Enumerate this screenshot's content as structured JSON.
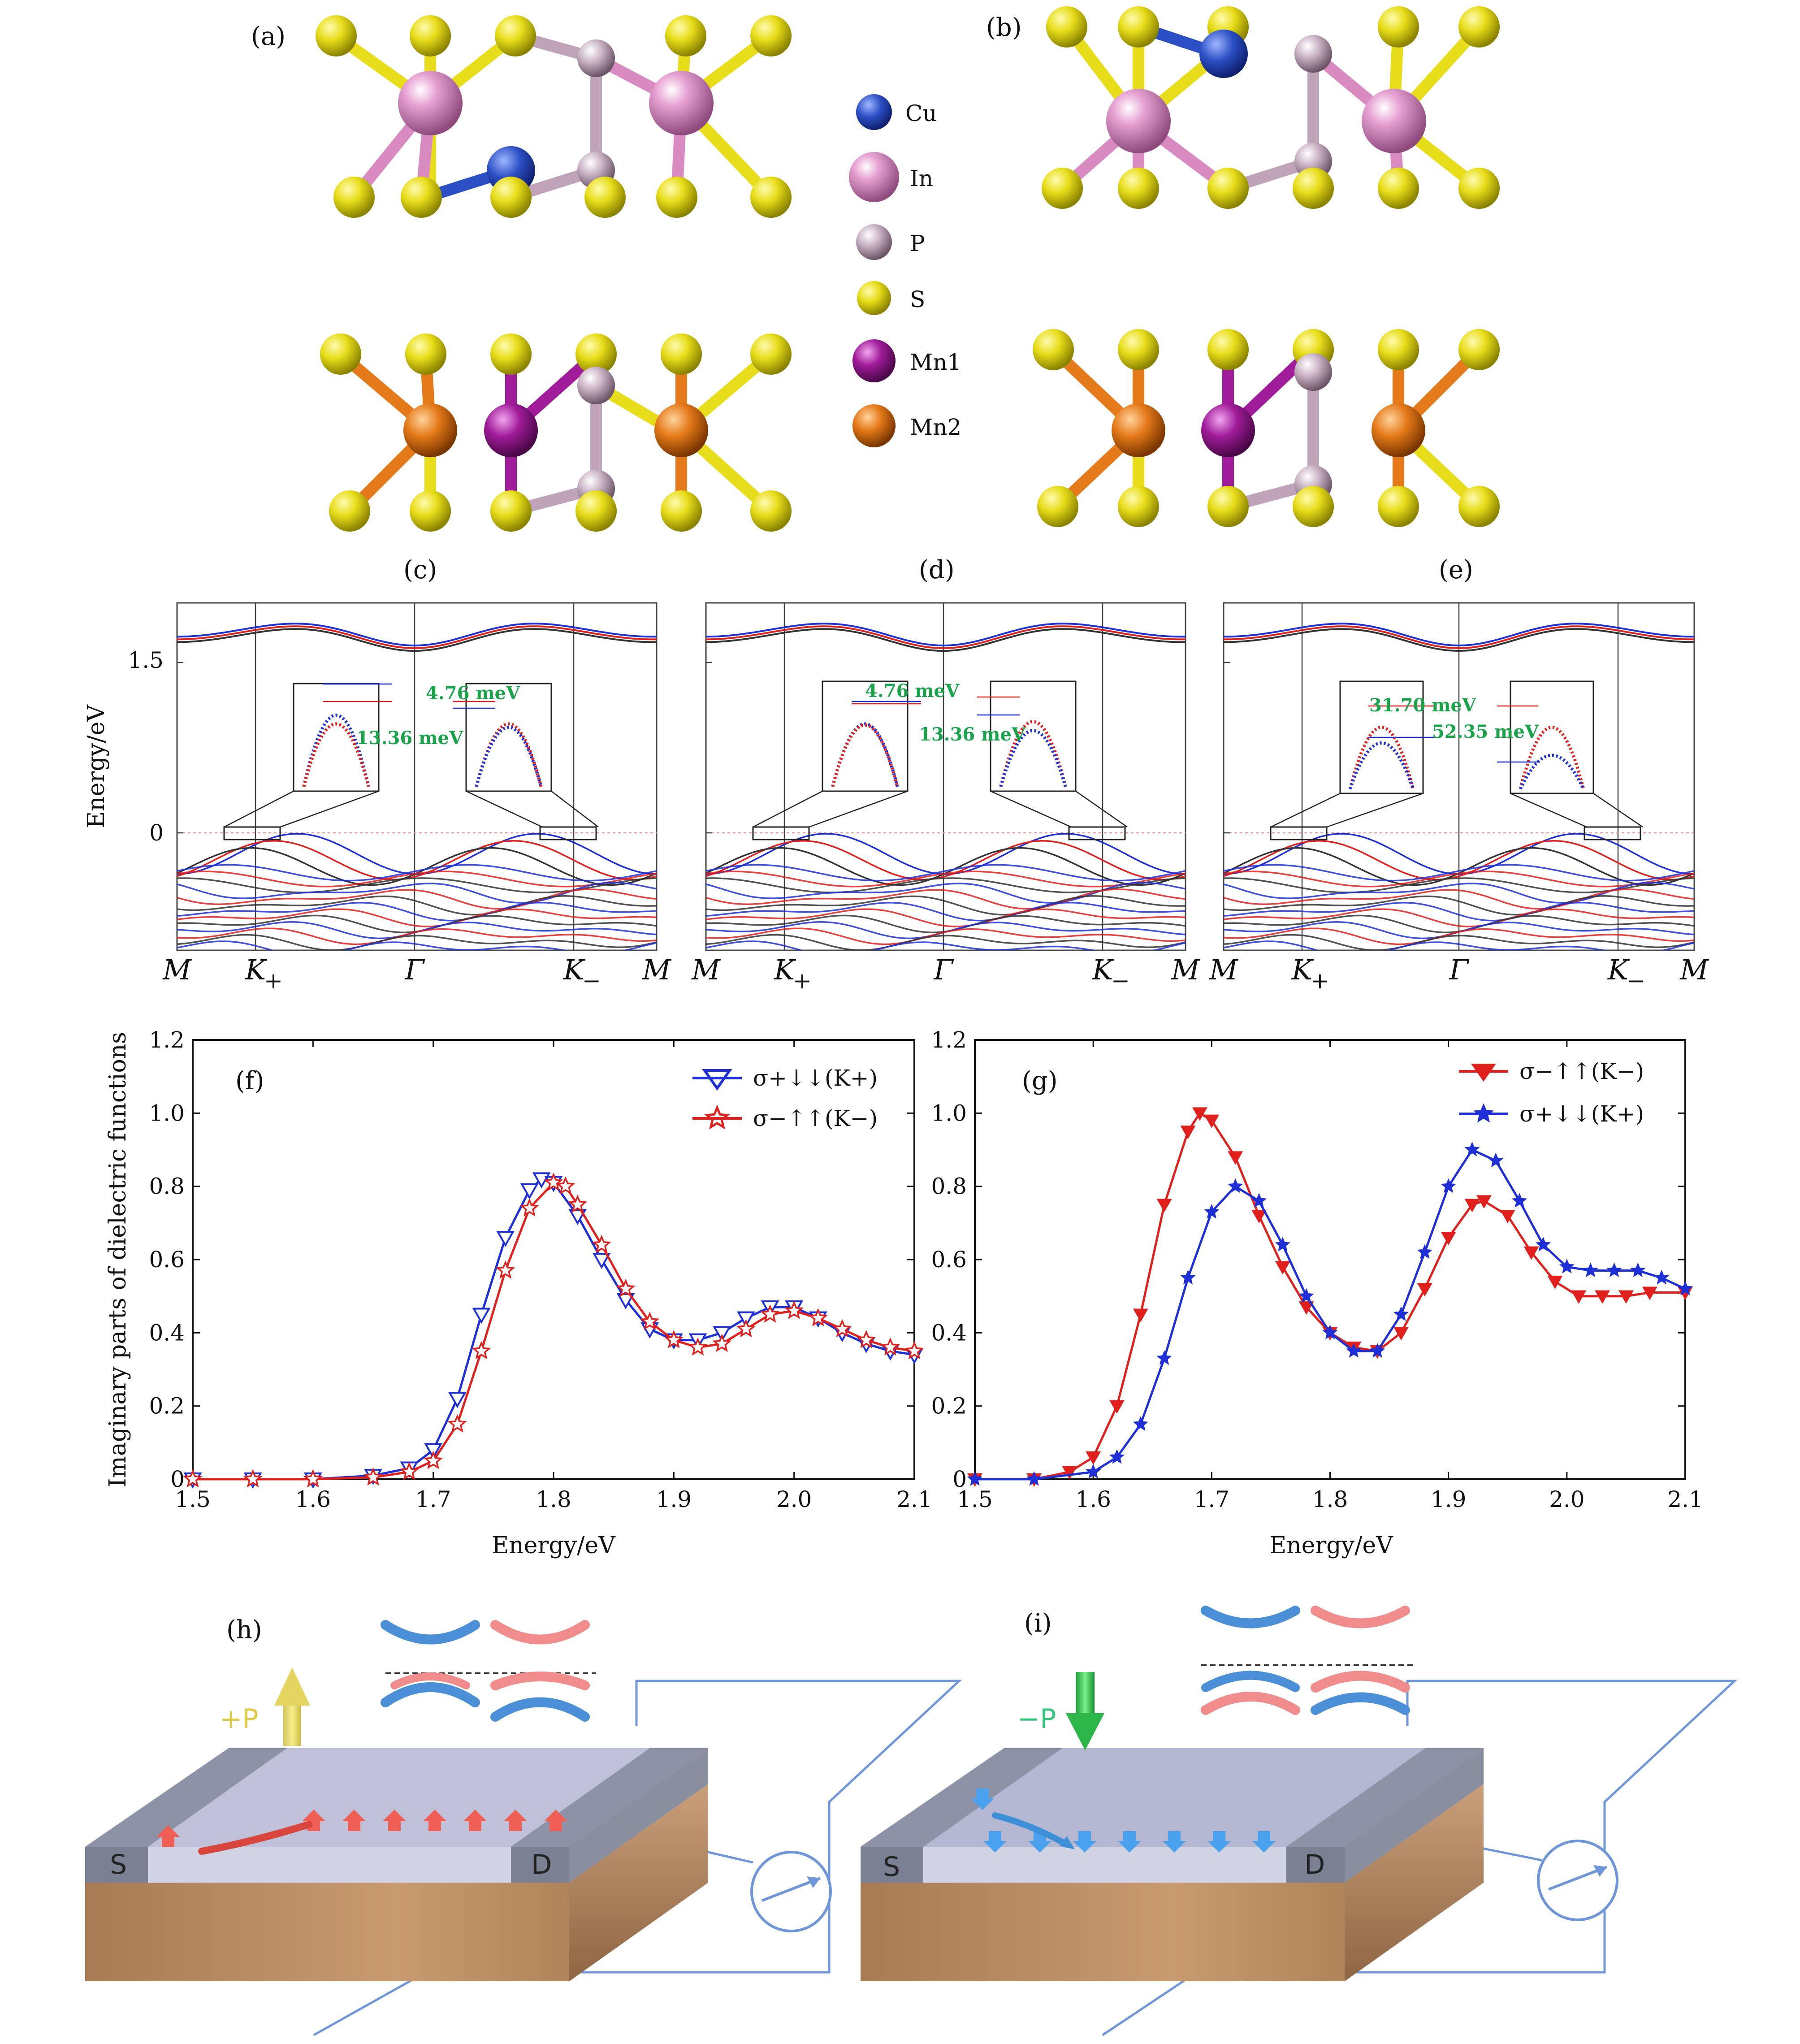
{
  "panels": {
    "a": "(a)",
    "b": "(b)",
    "c": "(c)",
    "d": "(d)",
    "e": "(e)",
    "f": "(f)",
    "g": "(g)",
    "h": "(h)",
    "i": "(i)"
  },
  "legend_atoms": [
    {
      "label": "Cu",
      "color": "#2b4fc4"
    },
    {
      "label": "In",
      "color": "#d98ac0"
    },
    {
      "label": "P",
      "color": "#bfa3b8"
    },
    {
      "label": "S",
      "color": "#e8dd1a"
    },
    {
      "label": "Mn1",
      "color": "#a01c9a"
    },
    {
      "label": "Mn2",
      "color": "#e57a1a"
    }
  ],
  "bands": {
    "ylabel": "Energy/eV",
    "yticks": [
      "1.5",
      "0"
    ],
    "kpoints": [
      "M",
      "K+",
      "Γ",
      "K−",
      "M"
    ],
    "c": {
      "ann1": "4.76 meV",
      "ann2": "13.36 meV"
    },
    "d": {
      "ann1": "4.76 meV",
      "ann2": "13.36 meV"
    },
    "e": {
      "ann1": "31.70 meV",
      "ann2": "52.35 meV"
    }
  },
  "chart_data": [
    {
      "type": "line",
      "panel": "(f)",
      "xlabel": "Energy/eV",
      "ylabel": "Imaginary parts of dielectric functions",
      "xlim": [
        1.5,
        2.1
      ],
      "ylim": [
        0,
        1.2
      ],
      "xticks": [
        "1.5",
        "1.6",
        "1.7",
        "1.8",
        "1.9",
        "2.0",
        "2.1"
      ],
      "yticks": [
        "0",
        "0.2",
        "0.4",
        "0.6",
        "0.8",
        "1.0",
        "1.2"
      ],
      "legend_position": "top-right",
      "series": [
        {
          "name": "σ+↓↓(K+)",
          "color": "#1f2fd6",
          "marker": "triangle-down-open",
          "x": [
            1.5,
            1.55,
            1.6,
            1.65,
            1.68,
            1.7,
            1.72,
            1.74,
            1.76,
            1.78,
            1.79,
            1.8,
            1.82,
            1.84,
            1.86,
            1.88,
            1.9,
            1.92,
            1.94,
            1.96,
            1.98,
            2.0,
            2.02,
            2.04,
            2.06,
            2.08,
            2.1
          ],
          "y": [
            0,
            0,
            0,
            0.01,
            0.03,
            0.08,
            0.22,
            0.45,
            0.66,
            0.79,
            0.82,
            0.81,
            0.72,
            0.6,
            0.49,
            0.41,
            0.38,
            0.38,
            0.4,
            0.44,
            0.47,
            0.47,
            0.44,
            0.4,
            0.37,
            0.35,
            0.34
          ]
        },
        {
          "name": "σ−↑↑(K−)",
          "color": "#e0201c",
          "marker": "star-open",
          "x": [
            1.5,
            1.55,
            1.6,
            1.65,
            1.68,
            1.7,
            1.72,
            1.74,
            1.76,
            1.78,
            1.8,
            1.81,
            1.82,
            1.84,
            1.86,
            1.88,
            1.9,
            1.92,
            1.94,
            1.96,
            1.98,
            2.0,
            2.02,
            2.04,
            2.06,
            2.08,
            2.1
          ],
          "y": [
            0,
            0,
            0,
            0.005,
            0.02,
            0.05,
            0.15,
            0.35,
            0.57,
            0.74,
            0.81,
            0.8,
            0.75,
            0.64,
            0.52,
            0.43,
            0.38,
            0.36,
            0.37,
            0.41,
            0.45,
            0.46,
            0.44,
            0.41,
            0.38,
            0.36,
            0.35
          ]
        }
      ]
    },
    {
      "type": "line",
      "panel": "(g)",
      "xlabel": "Energy/eV",
      "xlim": [
        1.5,
        2.1
      ],
      "ylim": [
        0,
        1.2
      ],
      "xticks": [
        "1.5",
        "1.6",
        "1.7",
        "1.8",
        "1.9",
        "2.0",
        "2.1"
      ],
      "yticks": [
        "0",
        "0.2",
        "0.4",
        "0.6",
        "0.8",
        "1.0",
        "1.2"
      ],
      "legend_position": "top-right",
      "series": [
        {
          "name": "σ−↑↑(K−)",
          "color": "#e0201c",
          "marker": "triangle-down-filled",
          "x": [
            1.5,
            1.55,
            1.58,
            1.6,
            1.62,
            1.64,
            1.66,
            1.68,
            1.69,
            1.7,
            1.72,
            1.74,
            1.76,
            1.78,
            1.8,
            1.82,
            1.84,
            1.86,
            1.88,
            1.9,
            1.92,
            1.93,
            1.95,
            1.97,
            1.99,
            2.01,
            2.03,
            2.05,
            2.07,
            2.1
          ],
          "y": [
            0,
            0,
            0.02,
            0.06,
            0.2,
            0.45,
            0.75,
            0.95,
            1.0,
            0.98,
            0.88,
            0.72,
            0.58,
            0.47,
            0.4,
            0.36,
            0.35,
            0.4,
            0.52,
            0.66,
            0.75,
            0.76,
            0.72,
            0.62,
            0.54,
            0.5,
            0.5,
            0.5,
            0.51,
            0.51
          ]
        },
        {
          "name": "σ+↓↓(K+)",
          "color": "#1f2fd6",
          "marker": "star-filled",
          "x": [
            1.5,
            1.55,
            1.6,
            1.62,
            1.64,
            1.66,
            1.68,
            1.7,
            1.72,
            1.74,
            1.76,
            1.78,
            1.8,
            1.82,
            1.84,
            1.86,
            1.88,
            1.9,
            1.92,
            1.94,
            1.96,
            1.98,
            2.0,
            2.02,
            2.04,
            2.06,
            2.08,
            2.1
          ],
          "y": [
            0,
            0,
            0.02,
            0.06,
            0.15,
            0.33,
            0.55,
            0.73,
            0.8,
            0.76,
            0.64,
            0.5,
            0.4,
            0.35,
            0.35,
            0.45,
            0.62,
            0.8,
            0.9,
            0.87,
            0.76,
            0.64,
            0.58,
            0.57,
            0.57,
            0.57,
            0.55,
            0.52
          ]
        }
      ]
    }
  ],
  "device": {
    "h": {
      "polarization": "+P",
      "source": "S",
      "drain": "D"
    },
    "i": {
      "polarization": "−P",
      "source": "S",
      "drain": "D"
    }
  }
}
